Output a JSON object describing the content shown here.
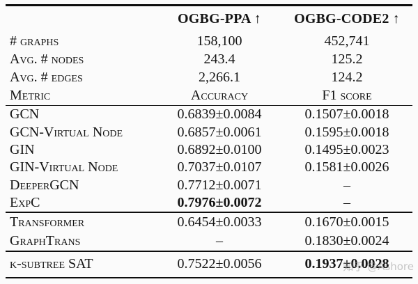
{
  "table": {
    "col_headers": {
      "ppa": "OGBG-PPA ↑",
      "code2": "OGBG-CODE2 ↑"
    },
    "info_rows": [
      {
        "label": "# graphs",
        "ppa": "158,100",
        "code2": "452,741"
      },
      {
        "label": "Avg. # nodes",
        "ppa": "243.4",
        "code2": "125.2"
      },
      {
        "label": "Avg. # edges",
        "ppa": "2,266.1",
        "code2": "124.2"
      },
      {
        "label": "Metric",
        "ppa": "Accuracy",
        "code2": "F1 score"
      }
    ],
    "gnn_rows": [
      {
        "label": "GCN",
        "ppa": "0.6839±0.0084",
        "code2": "0.1507±0.0018"
      },
      {
        "label": "GCN-Virtual Node",
        "ppa": "0.6857±0.0061",
        "code2": "0.1595±0.0018"
      },
      {
        "label": "GIN",
        "ppa": "0.6892±0.0100",
        "code2": "0.1495±0.0023"
      },
      {
        "label": "GIN-Virtual Node",
        "ppa": "0.7037±0.0107",
        "code2": "0.1581±0.0026"
      },
      {
        "label": "DeeperGCN",
        "ppa": "0.7712±0.0071",
        "code2": "–"
      },
      {
        "label": "ExpC",
        "ppa": "0.7976±0.0072",
        "code2": "–"
      }
    ],
    "transformer_rows": [
      {
        "label": "Transformer",
        "ppa": "0.6454±0.0033",
        "code2": "0.1670±0.0015"
      },
      {
        "label": "GraphTrans",
        "ppa": "–",
        "code2": "0.1830±0.0024"
      }
    ],
    "sat_rows": [
      {
        "label": "k-subtree SAT",
        "ppa": "0.7522±0.0056",
        "code2": "0.1937±0.0028"
      }
    ]
  },
  "watermark": "知乎 @Ashore"
}
